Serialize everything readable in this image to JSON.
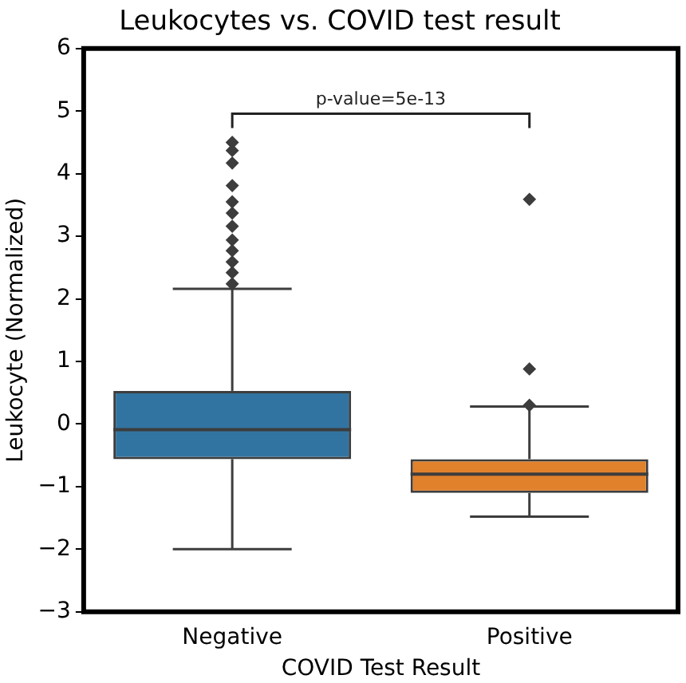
{
  "chart_data": {
    "type": "box",
    "title": "Leukocytes vs. COVID test result",
    "xlabel": "COVID Test Result",
    "ylabel": "Leukocyte (Normalized)",
    "categories": [
      "Negative",
      "Positive"
    ],
    "colors": [
      "#3274a1",
      "#e1812c"
    ],
    "boxes": [
      {
        "low": -2.0,
        "q1": -0.56,
        "median": -0.09,
        "q3": 0.53,
        "high": 2.16,
        "outliers": [
          2.24,
          2.42,
          2.59,
          2.77,
          2.94,
          3.16,
          3.37,
          3.55,
          3.81,
          4.17,
          4.37,
          4.5
        ]
      },
      {
        "low": -1.48,
        "q1": -1.1,
        "median": -0.8,
        "q3": -0.56,
        "high": 0.28,
        "outliers": [
          0.3,
          0.88,
          3.59
        ]
      }
    ],
    "ylim": [
      -3,
      6
    ],
    "yticks": [
      -3,
      -2,
      -1,
      0,
      1,
      2,
      3,
      4,
      5,
      6
    ],
    "annotations": [
      "p-value=5e-13"
    ],
    "grid": false,
    "legend": false
  }
}
